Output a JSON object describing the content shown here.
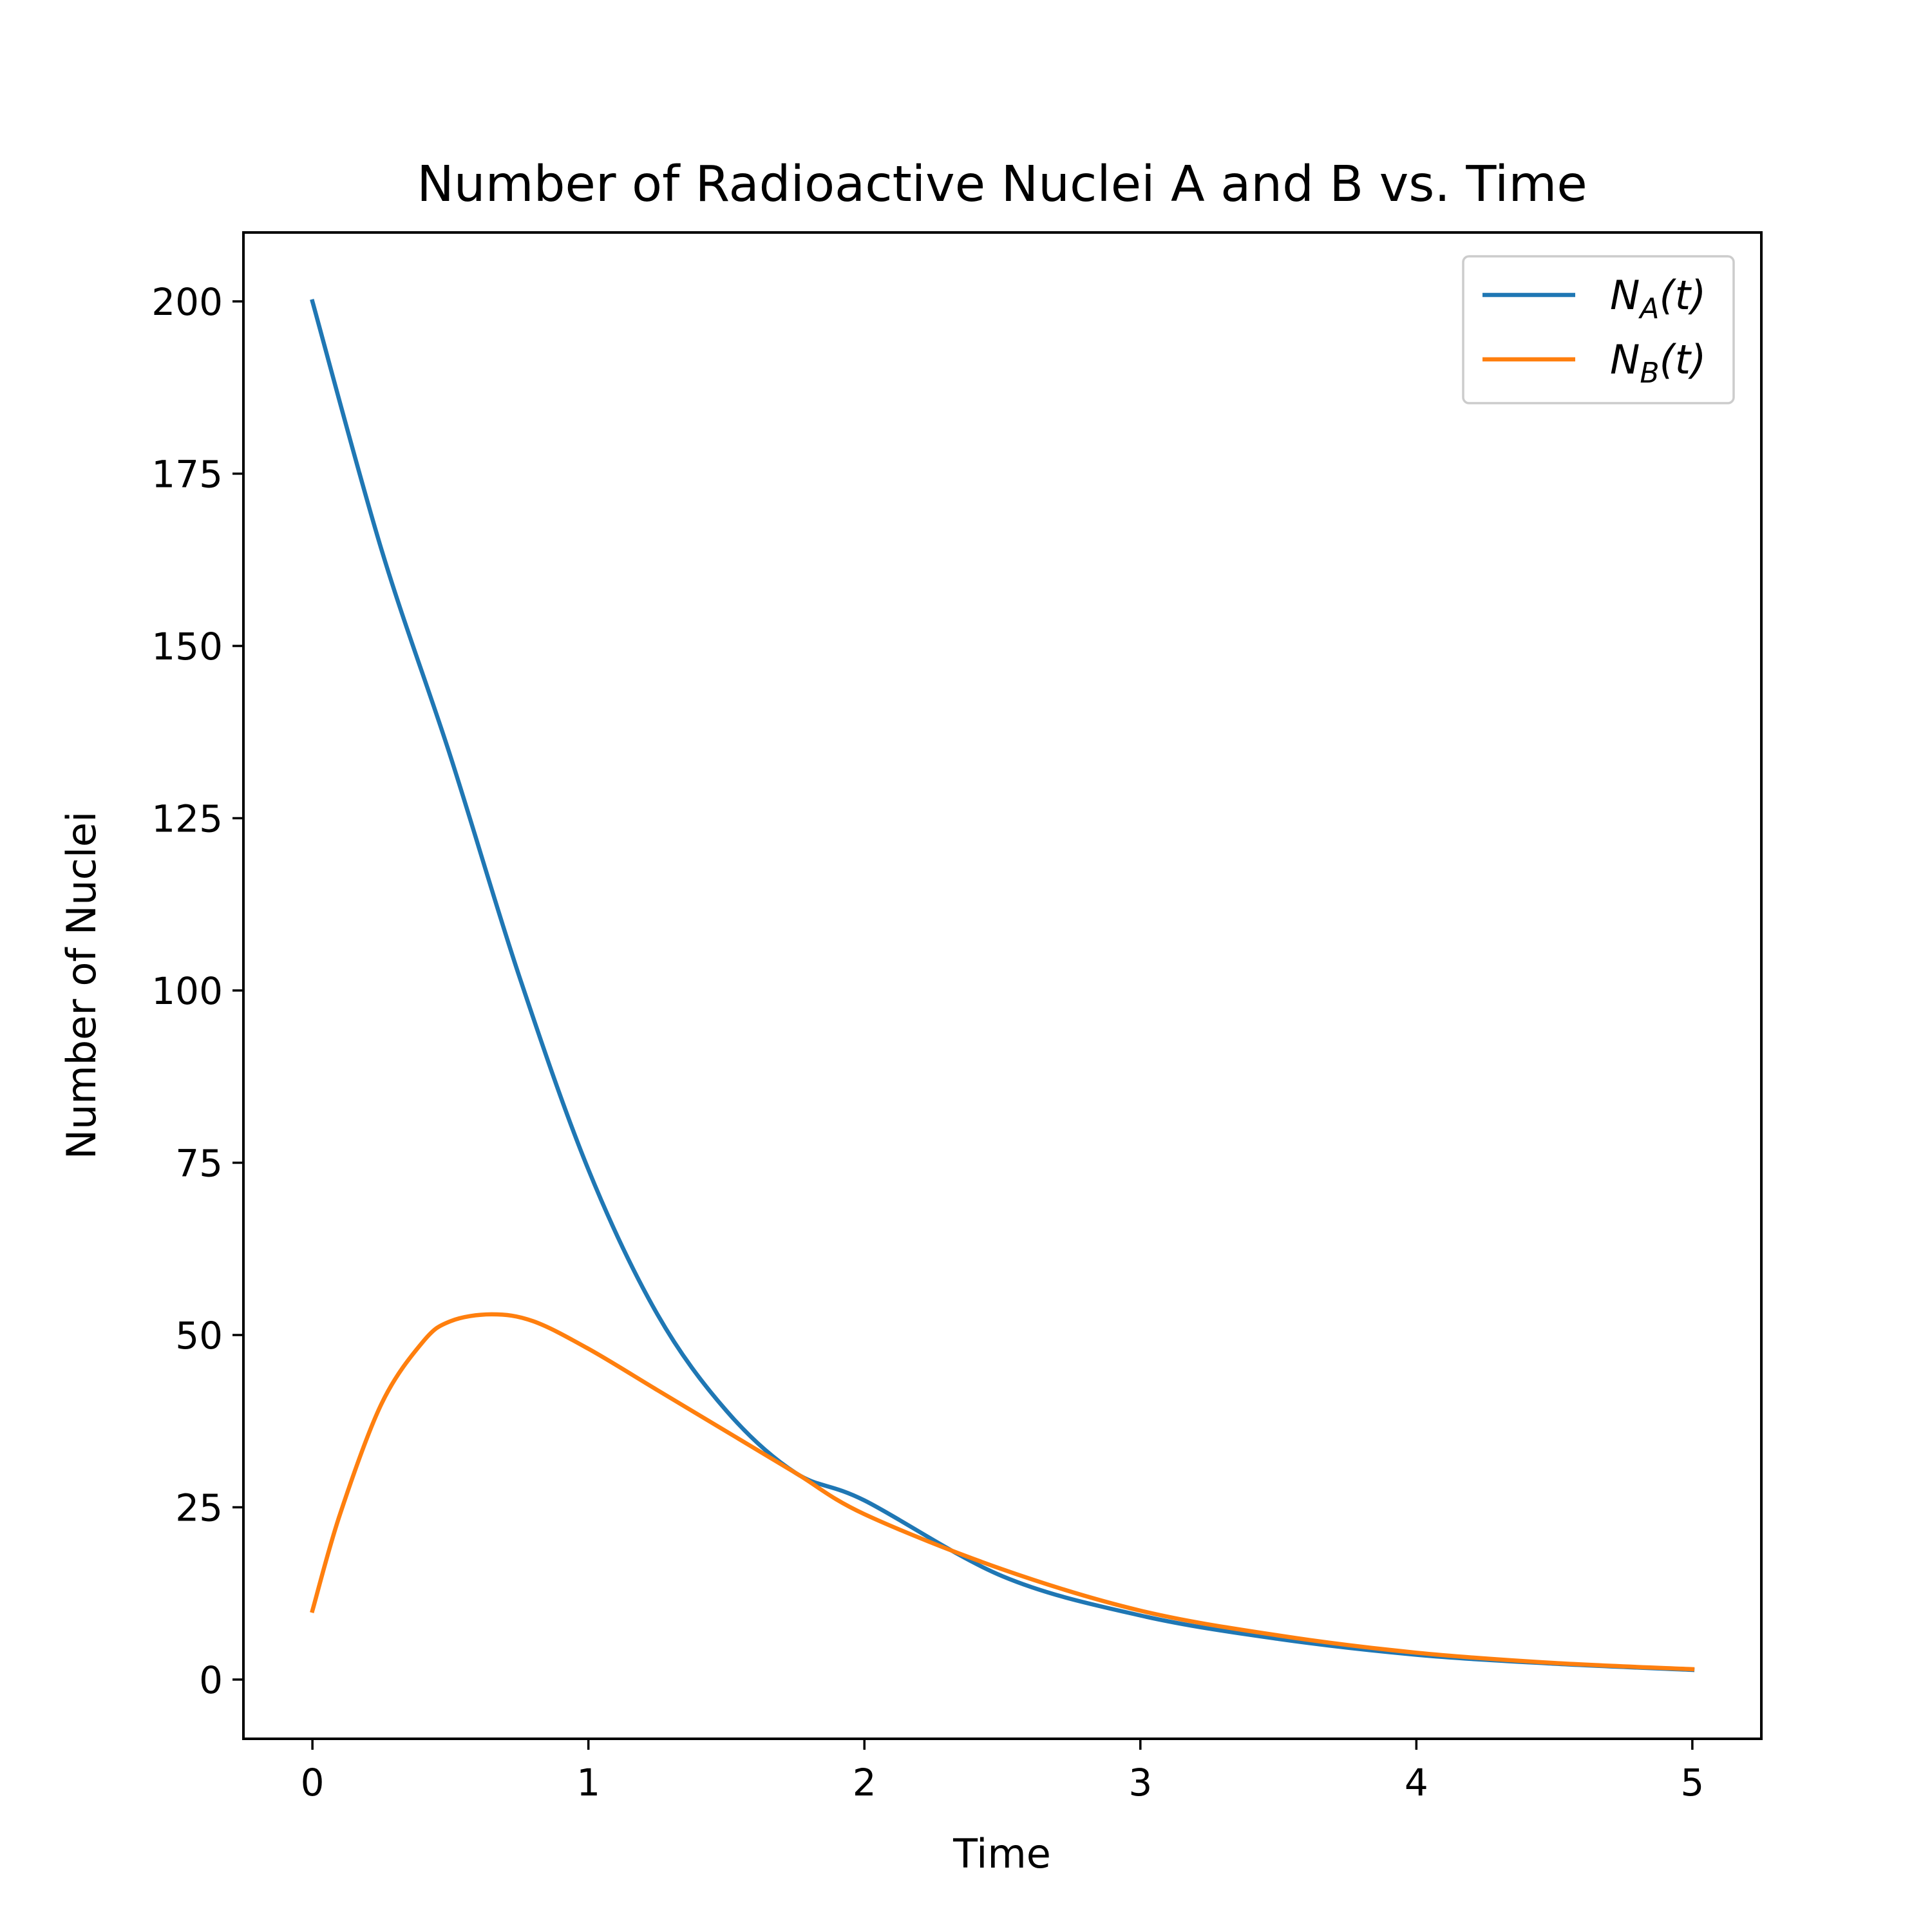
{
  "chart_data": {
    "type": "line",
    "title": "Number of Radioactive Nuclei A and B vs. Time",
    "xlabel": "Time",
    "ylabel": "Number of Nuclei",
    "xlim": [
      -0.25,
      5.25
    ],
    "ylim": [
      -8.6,
      210
    ],
    "xticks": [
      0,
      1,
      2,
      3,
      4,
      5
    ],
    "yticks": [
      0,
      25,
      50,
      75,
      100,
      125,
      150,
      175,
      200
    ],
    "grid": false,
    "legend_position": "top-right",
    "series": [
      {
        "name": "N_A(t)",
        "legend_main": "N",
        "legend_sub": "A",
        "legend_tail": "(t)",
        "color": "#1f77b4",
        "x": [
          0,
          0.25,
          0.5,
          0.75,
          1,
          1.25,
          1.5,
          1.75,
          2,
          2.5,
          3,
          3.5,
          4,
          4.5,
          5
        ],
        "y": [
          200,
          164,
          134,
          102,
          74,
          53,
          39,
          30,
          26,
          15,
          9.3,
          5.9,
          3.6,
          2.3,
          1.4
        ]
      },
      {
        "name": "N_B(t)",
        "legend_main": "N",
        "legend_sub": "B",
        "legend_tail": "(t)",
        "color": "#ff7f0e",
        "x": [
          0,
          0.1,
          0.25,
          0.4,
          0.5,
          0.65,
          0.8,
          1,
          1.25,
          1.5,
          1.75,
          2,
          2.5,
          3,
          3.5,
          4,
          4.5,
          5
        ],
        "y": [
          10,
          24,
          40,
          49,
          52,
          53,
          52,
          48,
          42,
          36,
          30,
          24,
          16,
          10,
          6.4,
          3.9,
          2.4,
          1.5
        ]
      }
    ]
  }
}
